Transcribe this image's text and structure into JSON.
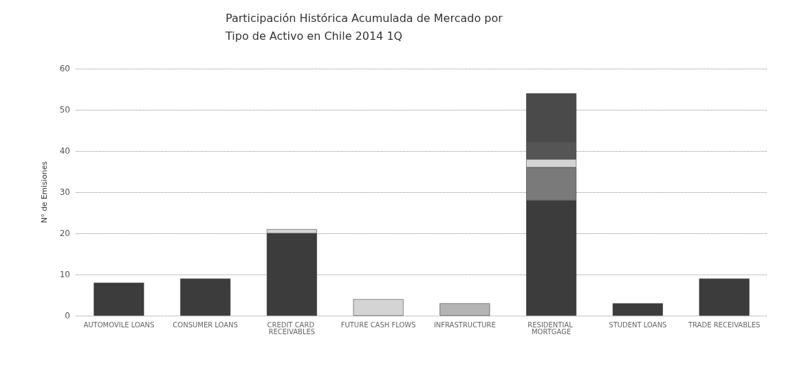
{
  "chart_data": {
    "type": "bar",
    "title": "Participación Histórica Acumulada de Mercado por Tipo de Activo en Chile 2014 1Q",
    "ylabel": "N° de Emisiones",
    "categories": [
      "AUTOMOVILE LOANS",
      "CONSUMER LOANS",
      "CREDIT CARD RECEIVABLES",
      "FUTURE CASH FLOWS",
      "INFRASTRUCTURE",
      "RESIDENTIAL MORTGAGE",
      "STUDENT LOANS",
      "TRADE RECEIVABLES"
    ],
    "stacked": true,
    "series": [
      {
        "color": "#3c3c3c",
        "values": [
          8,
          9,
          20,
          null,
          null,
          28,
          3,
          9
        ]
      },
      {
        "color": "#7a7a7a",
        "values": [
          null,
          null,
          null,
          null,
          null,
          8,
          null,
          null
        ]
      },
      {
        "color": "#d4d4d4",
        "values": [
          null,
          null,
          1,
          4,
          null,
          2,
          null,
          null
        ]
      },
      {
        "color": "#b4b4b4",
        "values": [
          null,
          null,
          null,
          null,
          3,
          null,
          null,
          null
        ]
      },
      {
        "color": "#555555",
        "values": [
          null,
          null,
          null,
          null,
          null,
          4,
          null,
          null
        ]
      },
      {
        "color": "#4a4a4a",
        "values": [
          null,
          null,
          null,
          null,
          null,
          12,
          null,
          null
        ]
      }
    ],
    "ylim": [
      0,
      60
    ],
    "yticks": [
      0,
      10,
      20,
      30,
      40,
      50,
      60
    ],
    "grid": "y"
  }
}
